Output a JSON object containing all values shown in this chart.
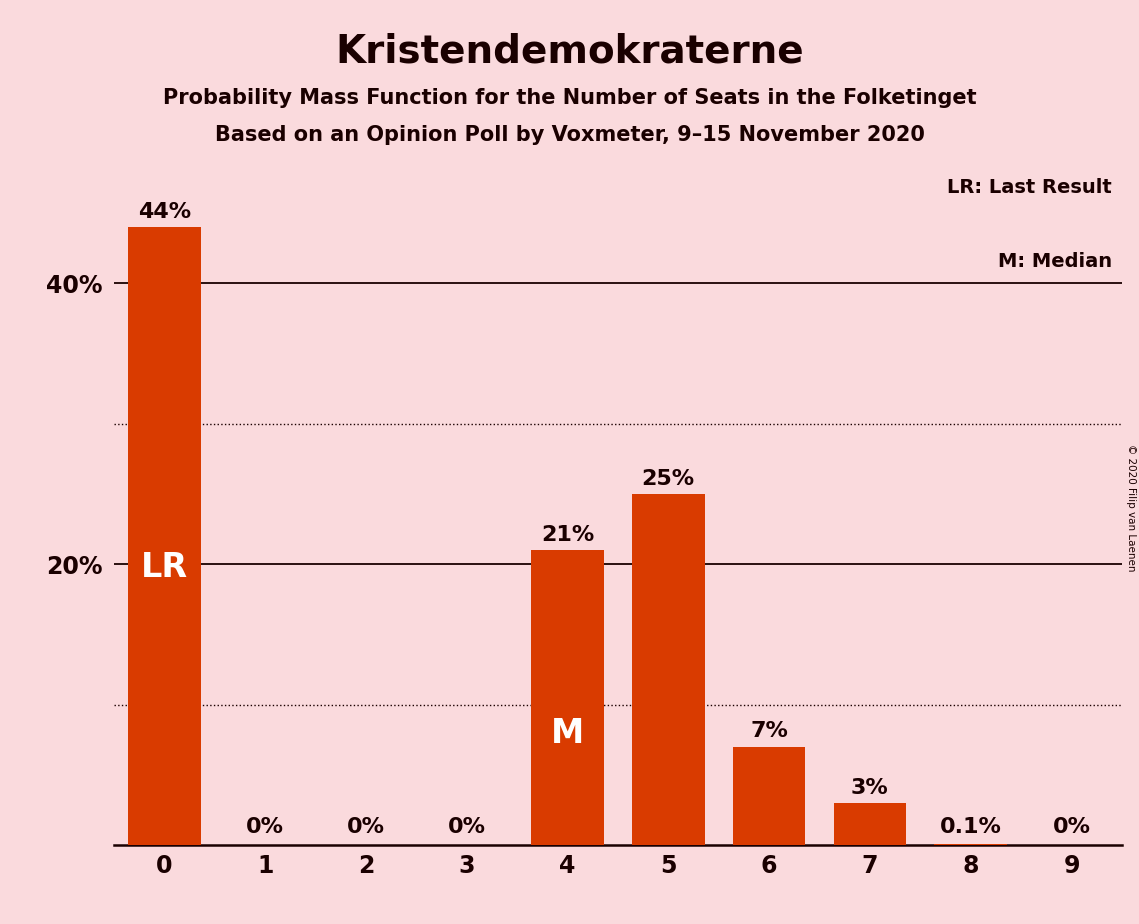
{
  "title": "Kristendemokraterne",
  "subtitle1": "Probability Mass Function for the Number of Seats in the Folketinget",
  "subtitle2": "Based on an Opinion Poll by Voxmeter, 9–15 November 2020",
  "copyright": "© 2020 Filip van Laenen",
  "categories": [
    0,
    1,
    2,
    3,
    4,
    5,
    6,
    7,
    8,
    9
  ],
  "values": [
    0.44,
    0.0,
    0.0,
    0.0,
    0.21,
    0.25,
    0.07,
    0.03,
    0.001,
    0.0
  ],
  "value_labels": [
    "44%",
    "0%",
    "0%",
    "0%",
    "21%",
    "25%",
    "7%",
    "3%",
    "0.1%",
    "0%"
  ],
  "bar_color": "#D93B00",
  "background_color": "#FADADD",
  "text_color": "#1a0000",
  "lr_bar_index": 0,
  "median_bar_index": 4,
  "lr_label": "LR",
  "median_label": "M",
  "legend_text1": "LR: Last Result",
  "legend_text2": "M: Median",
  "ylim_max": 0.48,
  "solid_gridlines": [
    0.2,
    0.4
  ],
  "dotted_gridlines": [
    0.1,
    0.3
  ],
  "ytick_positions": [
    0.2,
    0.4
  ],
  "ytick_labels": [
    "20%",
    "40%"
  ],
  "title_fontsize": 28,
  "subtitle_fontsize": 15,
  "tick_fontsize": 17,
  "bar_label_fontsize": 16,
  "inbar_label_fontsize": 24,
  "legend_fontsize": 14
}
